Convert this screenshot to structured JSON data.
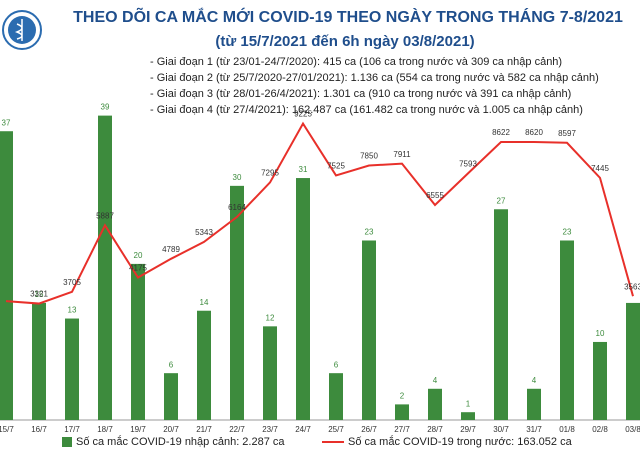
{
  "chart_data": {
    "type": "bar_line",
    "title": "THEO DÕI CA MẮC MỚI COVID-19 THEO NGÀY TRONG THÁNG 7-8/2021",
    "subtitle": "(từ 15/7/2021 đến 6h ngày 03/8/2021)",
    "annotations": [
      "- Giai đoạn 1 (từ 23/01-24/7/2020): 415 ca (106 ca trong nước và 309 ca nhập cảnh)",
      "- Giai đoạn 2 (từ 25/7/2020-27/01/2021): 1.136 ca (554 ca trong nước và 582 ca nhập cảnh)",
      "- Giai đoạn 3 (từ 28/01-26/4/2021): 1.301 ca (910 ca trong nước và 391 ca nhập cảnh)",
      "- Giai đoạn 4 (từ 27/4/2021): 162.487 ca (161.482 ca trong nước và 1.005 ca nhập cảnh)"
    ],
    "categories": [
      "15/7",
      "16/7",
      "17/7",
      "18/7",
      "19/7",
      "20/7",
      "21/7",
      "22/7",
      "23/7",
      "24/7",
      "25/7",
      "26/7",
      "27/7",
      "28/7",
      "29/7",
      "30/7",
      "31/7",
      "01/8",
      "02/8",
      "03/8"
    ],
    "series": [
      {
        "name": "Số ca mắc COVID-19 nhập cảnh: 2.287 ca",
        "color": "#3d8b3d",
        "values": [
          37,
          15,
          13,
          39,
          20,
          6,
          14,
          30,
          12,
          31,
          6,
          23,
          2,
          4,
          1,
          27,
          4,
          23,
          10,
          15
        ],
        "value_labels": [
          "37",
          "15",
          "13",
          "39",
          "20",
          "6",
          "14",
          "30",
          "12",
          "31",
          "6",
          "23",
          "2",
          "4",
          "1",
          "27",
          "4",
          "23",
          "10",
          null
        ]
      },
      {
        "name": "Số ca mắc COVID-19 trong nước: 163.052 ca",
        "color": "#e8302a",
        "axis": "y2",
        "values": [
          3400,
          3321,
          3705,
          5887,
          4175,
          4789,
          5343,
          6164,
          7295,
          9225,
          7525,
          7850,
          7911,
          6555,
          7593,
          8622,
          8620,
          8597,
          7445,
          3563
        ],
        "value_labels": [
          null,
          "3321",
          "3705",
          "5887",
          "4175",
          "4789",
          "5343",
          "6164",
          "7295",
          "9225",
          "7525",
          "7850",
          "7911",
          "6555",
          "7593",
          "8622",
          "8620",
          "8597",
          "7445",
          "3563"
        ]
      }
    ],
    "ylim": [
      0,
      41
    ],
    "y2lim": [
      -500,
      10000
    ]
  }
}
